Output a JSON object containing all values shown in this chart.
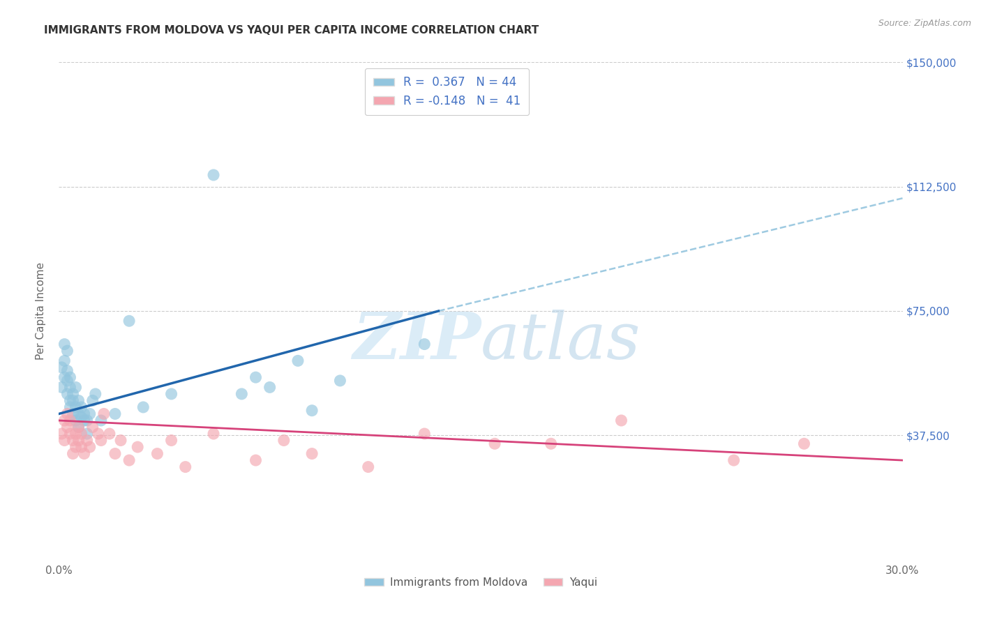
{
  "title": "IMMIGRANTS FROM MOLDOVA VS YAQUI PER CAPITA INCOME CORRELATION CHART",
  "source": "Source: ZipAtlas.com",
  "ylabel": "Per Capita Income",
  "xlim": [
    0.0,
    0.3
  ],
  "ylim": [
    0,
    150000
  ],
  "xticks": [
    0.0,
    0.05,
    0.1,
    0.15,
    0.2,
    0.25,
    0.3
  ],
  "xticklabels": [
    "0.0%",
    "",
    "",
    "",
    "",
    "",
    "30.0%"
  ],
  "yticks": [
    0,
    37500,
    75000,
    112500,
    150000
  ],
  "yticklabels": [
    "",
    "$37,500",
    "$75,000",
    "$112,500",
    "$150,000"
  ],
  "blue_color": "#92c5de",
  "pink_color": "#f4a6b0",
  "blue_line_color": "#2166ac",
  "pink_line_color": "#d6427a",
  "dashed_line_color": "#9ecae1",
  "watermark_color": "#cde4f5",
  "background_color": "#ffffff",
  "grid_color": "#cccccc",
  "title_color": "#333333",
  "axis_color": "#4472c4",
  "legend_label1": "R =  0.367   N = 44",
  "legend_label2": "R = -0.148   N =  41",
  "blue_x": [
    0.001,
    0.001,
    0.002,
    0.002,
    0.002,
    0.003,
    0.003,
    0.003,
    0.003,
    0.004,
    0.004,
    0.004,
    0.004,
    0.005,
    0.005,
    0.005,
    0.006,
    0.006,
    0.006,
    0.007,
    0.007,
    0.007,
    0.008,
    0.008,
    0.009,
    0.009,
    0.01,
    0.01,
    0.011,
    0.012,
    0.013,
    0.015,
    0.02,
    0.025,
    0.03,
    0.04,
    0.055,
    0.065,
    0.07,
    0.075,
    0.085,
    0.09,
    0.1,
    0.13
  ],
  "blue_y": [
    52000,
    58000,
    55000,
    60000,
    65000,
    50000,
    54000,
    57000,
    63000,
    48000,
    52000,
    55000,
    46000,
    50000,
    44000,
    48000,
    46000,
    52000,
    42000,
    48000,
    44000,
    40000,
    46000,
    43000,
    42000,
    44000,
    42000,
    38000,
    44000,
    48000,
    50000,
    42000,
    44000,
    72000,
    46000,
    50000,
    116000,
    50000,
    55000,
    52000,
    60000,
    45000,
    54000,
    65000
  ],
  "pink_x": [
    0.001,
    0.002,
    0.002,
    0.003,
    0.003,
    0.004,
    0.004,
    0.005,
    0.005,
    0.006,
    0.006,
    0.007,
    0.007,
    0.008,
    0.008,
    0.009,
    0.01,
    0.011,
    0.012,
    0.014,
    0.015,
    0.016,
    0.018,
    0.02,
    0.022,
    0.025,
    0.028,
    0.035,
    0.04,
    0.045,
    0.055,
    0.07,
    0.08,
    0.09,
    0.11,
    0.13,
    0.155,
    0.175,
    0.2,
    0.24,
    0.265
  ],
  "pink_y": [
    38000,
    42000,
    36000,
    40000,
    44000,
    38000,
    42000,
    36000,
    32000,
    38000,
    34000,
    40000,
    36000,
    38000,
    34000,
    32000,
    36000,
    34000,
    40000,
    38000,
    36000,
    44000,
    38000,
    32000,
    36000,
    30000,
    34000,
    32000,
    36000,
    28000,
    38000,
    30000,
    36000,
    32000,
    28000,
    38000,
    35000,
    35000,
    42000,
    30000,
    35000
  ],
  "blue_line_x0": 0.0,
  "blue_line_x1": 0.135,
  "blue_line_y0": 44000,
  "blue_line_y1": 75000,
  "dash_line_x0": 0.135,
  "dash_line_x1": 0.3,
  "dash_line_y0": 75000,
  "dash_line_y1": 109000,
  "pink_line_x0": 0.0,
  "pink_line_x1": 0.3,
  "pink_line_y0": 42000,
  "pink_line_y1": 30000
}
